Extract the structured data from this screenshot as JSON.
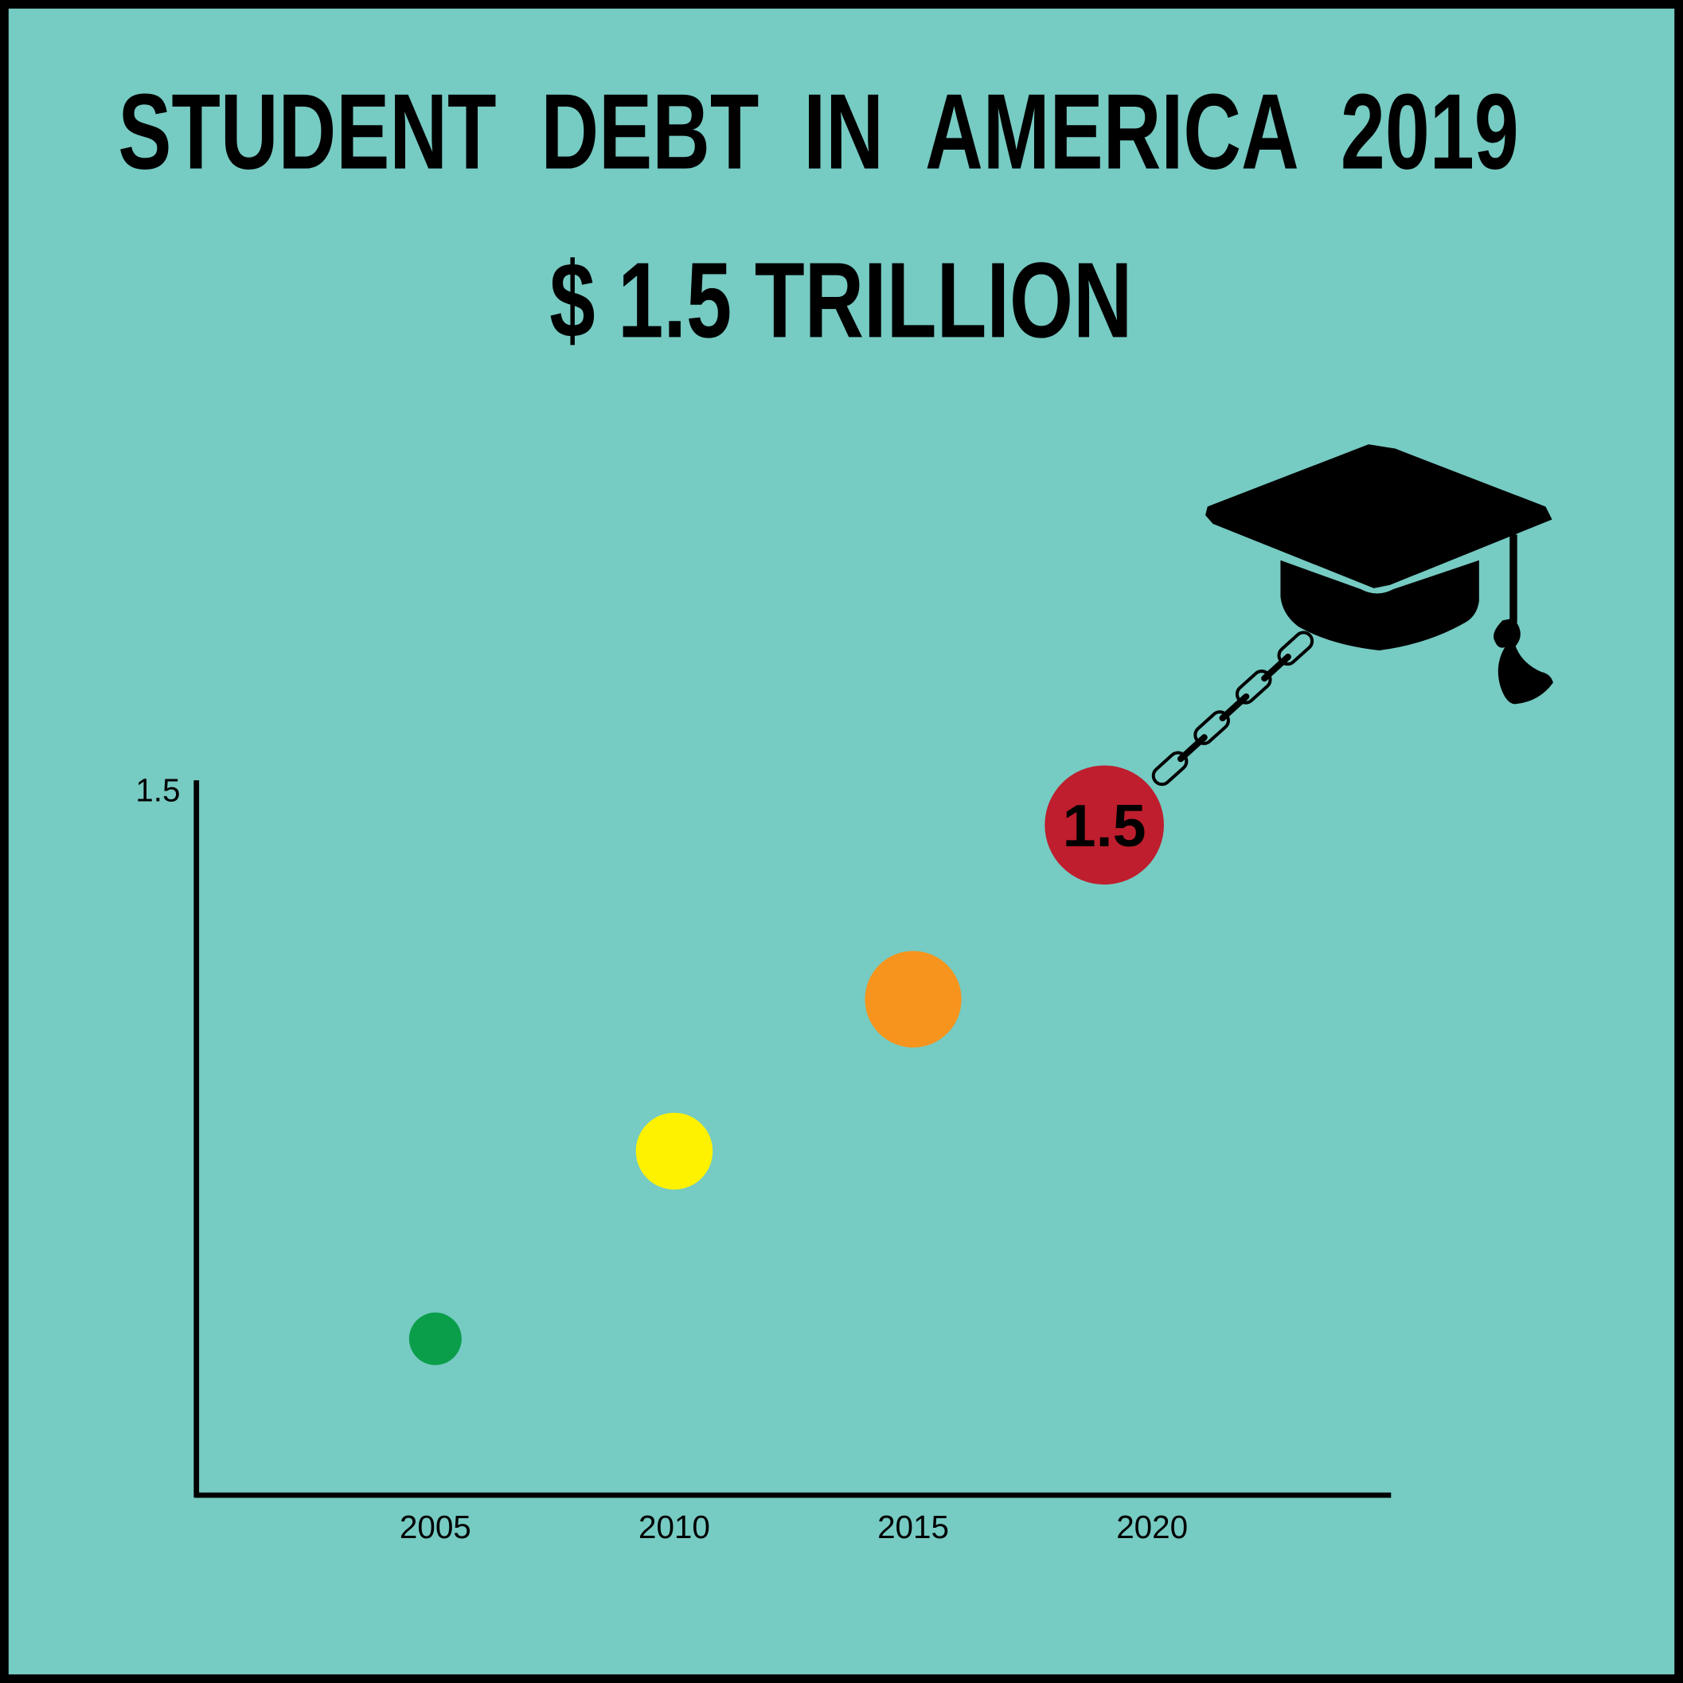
{
  "chart_data": {
    "type": "scatter",
    "title": "STUDENT  DEBT  IN  AMERICA  2019",
    "subtitle": "$ 1.5 TRILLION",
    "x": [
      2005,
      2010,
      2015,
      2019
    ],
    "values": [
      0.35,
      0.77,
      1.11,
      1.5
    ],
    "colors": [
      "#0a9e4a",
      "#fff200",
      "#f7941d",
      "#be1e2d"
    ],
    "xlim": [
      2000,
      2025
    ],
    "xticks": [
      2005,
      2010,
      2015,
      2020
    ],
    "ylim": [
      0,
      1.6
    ],
    "yticks": [
      1.5
    ],
    "grid": false
  }
}
